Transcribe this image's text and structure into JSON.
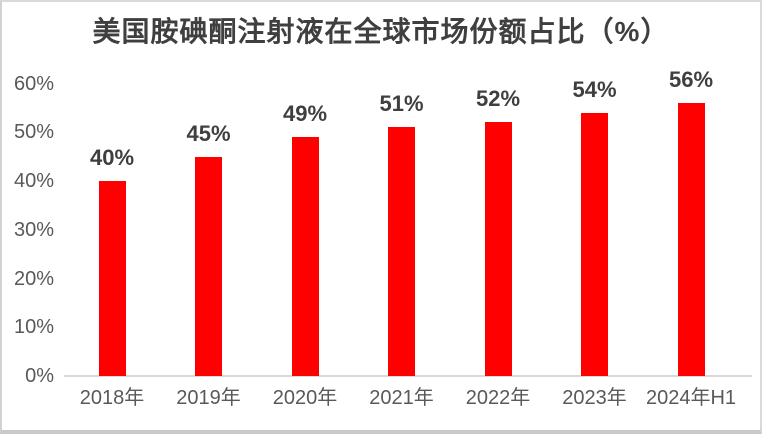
{
  "chart_data": {
    "type": "bar",
    "title": "美国胺碘酮注射液在全球市场份额占比（%）",
    "categories": [
      "2018年",
      "2019年",
      "2020年",
      "2021年",
      "2022年",
      "2023年",
      "2024年H1"
    ],
    "values": [
      40,
      45,
      49,
      51,
      52,
      54,
      56
    ],
    "data_labels": [
      "40%",
      "45%",
      "49%",
      "51%",
      "52%",
      "54%",
      "56%"
    ],
    "yticks": [
      "0%",
      "10%",
      "20%",
      "30%",
      "40%",
      "50%",
      "60%"
    ],
    "ytick_values": [
      0,
      10,
      20,
      30,
      40,
      50,
      60
    ],
    "ylim": [
      0,
      60
    ],
    "xlabel": "",
    "ylabel": "",
    "grid": false,
    "legend": "none",
    "colors": {
      "bar": "#ff0000",
      "title_text": "#3f3f3f",
      "data_label_text": "#3f3f3f",
      "axis_text": "#595959",
      "axis_line": "#d9d9d9",
      "background": "#ffffff",
      "frame_border": "#d2d2d2"
    }
  }
}
